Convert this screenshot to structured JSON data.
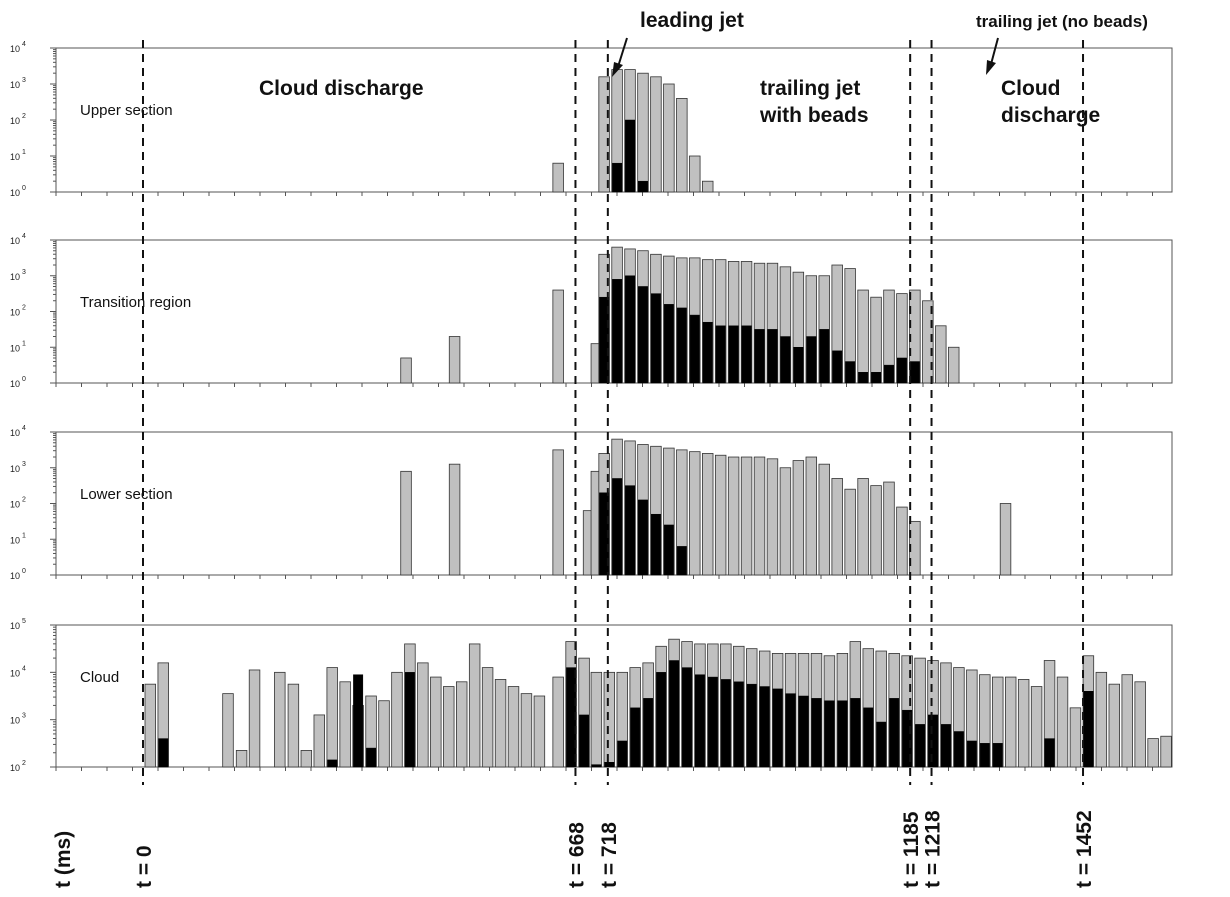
{
  "chart_data": {
    "type": "bar",
    "xlabel": "t (ms)",
    "bin_width_ms": 20,
    "panels": [
      {
        "label": "Upper section",
        "ylim_exp": [
          0,
          4
        ],
        "yticks": [
          {
            "base": "10",
            "exp": "4"
          },
          {
            "base": "10",
            "exp": "3"
          },
          {
            "base": "10",
            "exp": "2"
          },
          {
            "base": "10",
            "exp": "1"
          },
          {
            "base": "10",
            "exp": "0"
          }
        ],
        "gray": [
          [
            630,
            0.8
          ],
          [
            701,
            3.2
          ],
          [
            721,
            3.4
          ],
          [
            741,
            3.4
          ],
          [
            761,
            3.3
          ],
          [
            781,
            3.2
          ],
          [
            801,
            3.0
          ],
          [
            821,
            2.6
          ],
          [
            841,
            1.0
          ],
          [
            861,
            0.3
          ]
        ],
        "black": [
          [
            721,
            0.8
          ],
          [
            741,
            2.0
          ],
          [
            761,
            0.3
          ]
        ]
      },
      {
        "label": "Transition region",
        "ylim_exp": [
          0,
          4
        ],
        "yticks": [
          {
            "base": "10",
            "exp": "4"
          },
          {
            "base": "10",
            "exp": "3"
          },
          {
            "base": "10",
            "exp": "2"
          },
          {
            "base": "10",
            "exp": "1"
          },
          {
            "base": "10",
            "exp": "0"
          }
        ],
        "gray": [
          [
            395,
            0.7
          ],
          [
            470,
            1.3
          ],
          [
            630,
            2.6
          ],
          [
            689,
            1.1
          ],
          [
            701,
            3.6
          ],
          [
            721,
            3.8
          ],
          [
            741,
            3.75
          ],
          [
            761,
            3.7
          ],
          [
            781,
            3.6
          ],
          [
            801,
            3.55
          ],
          [
            821,
            3.5
          ],
          [
            841,
            3.5
          ],
          [
            861,
            3.45
          ],
          [
            881,
            3.45
          ],
          [
            901,
            3.4
          ],
          [
            921,
            3.4
          ],
          [
            941,
            3.35
          ],
          [
            961,
            3.35
          ],
          [
            981,
            3.25
          ],
          [
            1001,
            3.1
          ],
          [
            1021,
            3.0
          ],
          [
            1041,
            3.0
          ],
          [
            1061,
            3.3
          ],
          [
            1081,
            3.2
          ],
          [
            1101,
            2.6
          ],
          [
            1121,
            2.4
          ],
          [
            1141,
            2.6
          ],
          [
            1161,
            2.5
          ],
          [
            1181,
            2.6
          ],
          [
            1201,
            2.3
          ],
          [
            1221,
            1.6
          ],
          [
            1241,
            1.0
          ]
        ],
        "black": [
          [
            701,
            2.4
          ],
          [
            721,
            2.9
          ],
          [
            741,
            3.0
          ],
          [
            761,
            2.7
          ],
          [
            781,
            2.5
          ],
          [
            801,
            2.2
          ],
          [
            821,
            2.1
          ],
          [
            841,
            1.9
          ],
          [
            861,
            1.7
          ],
          [
            881,
            1.6
          ],
          [
            901,
            1.6
          ],
          [
            921,
            1.6
          ],
          [
            941,
            1.5
          ],
          [
            961,
            1.5
          ],
          [
            981,
            1.3
          ],
          [
            1001,
            1.0
          ],
          [
            1021,
            1.3
          ],
          [
            1041,
            1.5
          ],
          [
            1061,
            0.9
          ],
          [
            1081,
            0.6
          ],
          [
            1101,
            0.3
          ],
          [
            1121,
            0.3
          ],
          [
            1141,
            0.5
          ],
          [
            1161,
            0.7
          ],
          [
            1181,
            0.6
          ]
        ]
      },
      {
        "label": "Lower section",
        "ylim_exp": [
          0,
          4
        ],
        "yticks": [
          {
            "base": "10",
            "exp": "4"
          },
          {
            "base": "10",
            "exp": "3"
          },
          {
            "base": "10",
            "exp": "2"
          },
          {
            "base": "10",
            "exp": "1"
          },
          {
            "base": "10",
            "exp": "0"
          }
        ],
        "gray": [
          [
            395,
            2.9
          ],
          [
            470,
            3.1
          ],
          [
            630,
            3.5
          ],
          [
            677,
            1.8
          ],
          [
            689,
            2.9
          ],
          [
            701,
            3.4
          ],
          [
            721,
            3.8
          ],
          [
            741,
            3.75
          ],
          [
            761,
            3.65
          ],
          [
            781,
            3.6
          ],
          [
            801,
            3.55
          ],
          [
            821,
            3.5
          ],
          [
            841,
            3.45
          ],
          [
            861,
            3.4
          ],
          [
            881,
            3.35
          ],
          [
            901,
            3.3
          ],
          [
            921,
            3.3
          ],
          [
            941,
            3.3
          ],
          [
            961,
            3.25
          ],
          [
            981,
            3.0
          ],
          [
            1001,
            3.2
          ],
          [
            1021,
            3.3
          ],
          [
            1041,
            3.1
          ],
          [
            1061,
            2.7
          ],
          [
            1081,
            2.4
          ],
          [
            1101,
            2.7
          ],
          [
            1121,
            2.5
          ],
          [
            1141,
            2.6
          ],
          [
            1161,
            1.9
          ],
          [
            1181,
            1.5
          ],
          [
            1321,
            2.0
          ]
        ],
        "black": [
          [
            701,
            2.3
          ],
          [
            721,
            2.7
          ],
          [
            741,
            2.5
          ],
          [
            761,
            2.1
          ],
          [
            781,
            1.7
          ],
          [
            801,
            1.4
          ],
          [
            821,
            0.8
          ]
        ]
      },
      {
        "label": "Cloud",
        "ylim_exp": [
          2,
          5
        ],
        "yticks": [
          {
            "base": "10",
            "exp": "5"
          },
          {
            "base": "10",
            "exp": "4"
          },
          {
            "base": "10",
            "exp": "3"
          },
          {
            "base": "10",
            "exp": "2"
          }
        ],
        "gray": [
          [
            0,
            3.75
          ],
          [
            20,
            4.2
          ],
          [
            120,
            3.55
          ],
          [
            141,
            2.35
          ],
          [
            161,
            4.05
          ],
          [
            200,
            4.0
          ],
          [
            221,
            3.75
          ],
          [
            241,
            2.35
          ],
          [
            261,
            3.1
          ],
          [
            281,
            4.1
          ],
          [
            301,
            3.8
          ],
          [
            321,
            3.3
          ],
          [
            341,
            3.5
          ],
          [
            361,
            3.4
          ],
          [
            381,
            4.0
          ],
          [
            401,
            4.6
          ],
          [
            421,
            4.2
          ],
          [
            441,
            3.9
          ],
          [
            461,
            3.7
          ],
          [
            481,
            3.8
          ],
          [
            501,
            4.6
          ],
          [
            521,
            4.1
          ],
          [
            541,
            3.85
          ],
          [
            561,
            3.7
          ],
          [
            581,
            3.55
          ],
          [
            601,
            3.5
          ],
          [
            630,
            3.9
          ],
          [
            650,
            4.65
          ],
          [
            670,
            4.3
          ],
          [
            689,
            4.0
          ],
          [
            709,
            4.0
          ],
          [
            729,
            4.0
          ],
          [
            749,
            4.1
          ],
          [
            769,
            4.2
          ],
          [
            789,
            4.55
          ],
          [
            809,
            4.7
          ],
          [
            829,
            4.65
          ],
          [
            849,
            4.6
          ],
          [
            869,
            4.6
          ],
          [
            889,
            4.6
          ],
          [
            909,
            4.55
          ],
          [
            929,
            4.5
          ],
          [
            949,
            4.45
          ],
          [
            969,
            4.4
          ],
          [
            989,
            4.4
          ],
          [
            1009,
            4.4
          ],
          [
            1029,
            4.4
          ],
          [
            1049,
            4.35
          ],
          [
            1069,
            4.4
          ],
          [
            1089,
            4.65
          ],
          [
            1109,
            4.5
          ],
          [
            1129,
            4.45
          ],
          [
            1149,
            4.4
          ],
          [
            1169,
            4.35
          ],
          [
            1189,
            4.3
          ],
          [
            1209,
            4.25
          ],
          [
            1229,
            4.2
          ],
          [
            1249,
            4.1
          ],
          [
            1269,
            4.05
          ],
          [
            1289,
            3.95
          ],
          [
            1309,
            3.9
          ],
          [
            1329,
            3.9
          ],
          [
            1349,
            3.85
          ],
          [
            1369,
            3.7
          ],
          [
            1389,
            4.25
          ],
          [
            1409,
            3.9
          ],
          [
            1429,
            3.25
          ],
          [
            1449,
            4.35
          ],
          [
            1469,
            4.0
          ],
          [
            1489,
            3.75
          ],
          [
            1509,
            3.95
          ],
          [
            1529,
            3.8
          ],
          [
            1549,
            2.6
          ],
          [
            1569,
            2.65
          ]
        ],
        "black": [
          [
            20,
            2.6
          ],
          [
            281,
            2.15
          ],
          [
            321,
            3.95
          ],
          [
            341,
            2.4
          ],
          [
            401,
            4.0
          ],
          [
            650,
            4.1
          ],
          [
            670,
            3.1
          ],
          [
            689,
            2.05
          ],
          [
            709,
            2.1
          ],
          [
            729,
            2.55
          ],
          [
            749,
            3.25
          ],
          [
            769,
            3.45
          ],
          [
            789,
            4.0
          ],
          [
            809,
            4.25
          ],
          [
            829,
            4.1
          ],
          [
            849,
            3.95
          ],
          [
            869,
            3.9
          ],
          [
            889,
            3.85
          ],
          [
            909,
            3.8
          ],
          [
            929,
            3.75
          ],
          [
            949,
            3.7
          ],
          [
            969,
            3.65
          ],
          [
            989,
            3.55
          ],
          [
            1009,
            3.5
          ],
          [
            1029,
            3.45
          ],
          [
            1049,
            3.4
          ],
          [
            1069,
            3.4
          ],
          [
            1089,
            3.45
          ],
          [
            1109,
            3.25
          ],
          [
            1129,
            2.95
          ],
          [
            1149,
            3.45
          ],
          [
            1169,
            3.2
          ],
          [
            1189,
            2.9
          ],
          [
            1209,
            3.1
          ],
          [
            1229,
            2.9
          ],
          [
            1249,
            2.75
          ],
          [
            1269,
            2.55
          ],
          [
            1289,
            2.5
          ],
          [
            1309,
            2.5
          ],
          [
            1389,
            2.6
          ],
          [
            1449,
            3.6
          ]
        ]
      }
    ],
    "time_markers": [
      "t = 0",
      "t = 668",
      "t = 718",
      "t = 1185",
      "t = 1218",
      "t = 1452"
    ],
    "time_marker_values": [
      0,
      668,
      718,
      1185,
      1218,
      1452
    ],
    "annotations": {
      "leading_jet": "leading jet",
      "trailing_jet_no_beads": "trailing jet (no beads)",
      "cloud_discharge_left": "Cloud discharge",
      "trailing_jet_with_beads_line1": "trailing jet",
      "trailing_jet_with_beads_line2": "with beads",
      "cloud_discharge_right_line1": "Cloud",
      "cloud_discharge_right_line2": "discharge"
    },
    "legend": "none",
    "grid": false
  }
}
